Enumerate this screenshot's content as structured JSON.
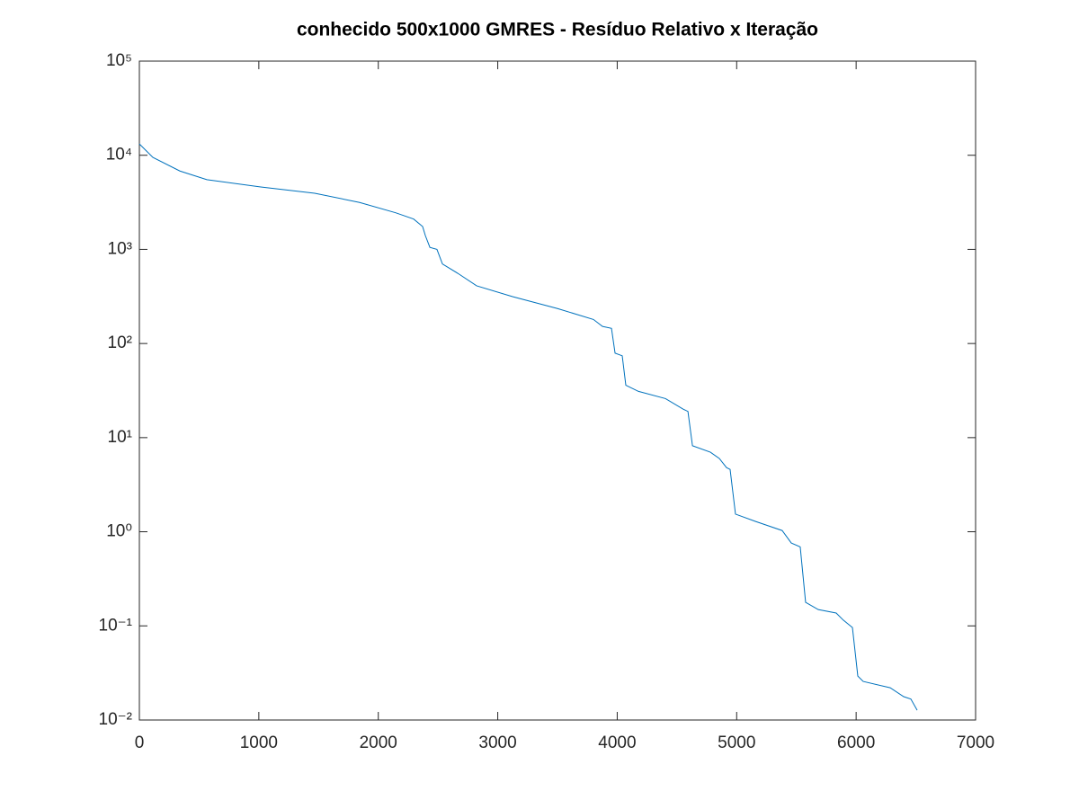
{
  "chart_data": {
    "type": "line",
    "title": "conhecido 500x1000 GMRES - Resíduo Relativo x Iteração",
    "yscale": "log",
    "xlim": [
      0,
      7000
    ],
    "ylim": [
      0.01,
      100000
    ],
    "xticks": [
      0,
      1000,
      2000,
      3000,
      4000,
      5000,
      6000,
      7000
    ],
    "yticks": [
      {
        "value": 0.01,
        "label": "10⁻²"
      },
      {
        "value": 0.1,
        "label": "10⁻¹"
      },
      {
        "value": 1,
        "label": "10⁰"
      },
      {
        "value": 10,
        "label": "10¹"
      },
      {
        "value": 100,
        "label": "10²"
      },
      {
        "value": 1000,
        "label": "10³"
      },
      {
        "value": 10000,
        "label": "10⁴"
      },
      {
        "value": 100000,
        "label": "10⁵"
      }
    ],
    "series": [
      {
        "color": "#0072bd",
        "x": [
          0,
          113,
          339,
          565,
          1016,
          1468,
          1844,
          2145,
          2296,
          2371,
          2394,
          2432,
          2491,
          2537,
          2672,
          2823,
          3124,
          3500,
          3801,
          3877,
          3952,
          3982,
          4042,
          4072,
          4178,
          4404,
          4554,
          4592,
          4630,
          4780,
          4855,
          4915,
          4945,
          4990,
          5156,
          5381,
          5457,
          5532,
          5577,
          5683,
          5833,
          5893,
          5969,
          6014,
          6059,
          6285,
          6398,
          6458,
          6511
        ],
        "values": [
          13200,
          9500,
          6800,
          5500,
          4600,
          3950,
          3150,
          2450,
          2100,
          1750,
          1400,
          1050,
          1000,
          700,
          550,
          410,
          315,
          235,
          180,
          152,
          145,
          79,
          74,
          36,
          31,
          26,
          20,
          19,
          8.2,
          7.0,
          6.0,
          4.8,
          4.6,
          1.54,
          1.29,
          1.03,
          0.76,
          0.69,
          0.178,
          0.149,
          0.137,
          0.115,
          0.096,
          0.0293,
          0.0257,
          0.022,
          0.0177,
          0.0167,
          0.0127
        ]
      }
    ]
  }
}
